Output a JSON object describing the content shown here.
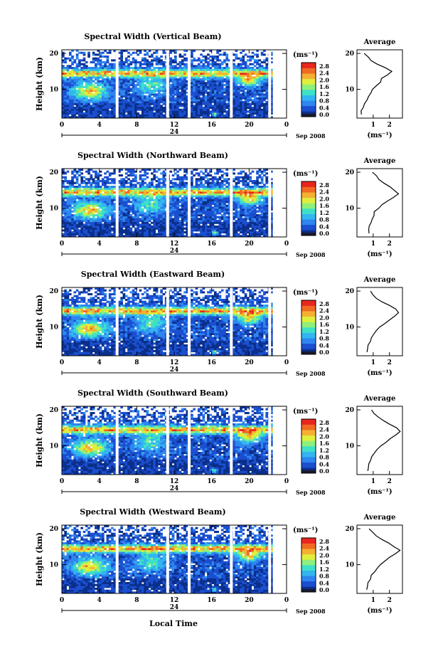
{
  "figure": {
    "common_xlabel": "Local Time",
    "date_label": "Sep 2008",
    "day_label": "24",
    "units_label": "(ms⁻¹)"
  },
  "colorbar": {
    "ticks": [
      "0.0",
      "0.4",
      "0.8",
      "1.2",
      "1.6",
      "2.0",
      "2.4",
      "2.8"
    ],
    "colors": [
      "#0b2f8a",
      "#1b4fd0",
      "#2e86ee",
      "#33b6f0",
      "#3ee0c8",
      "#8ef07a",
      "#e0ee3c",
      "#f5b032",
      "#f06a22",
      "#e8261e"
    ]
  },
  "chart_data": [
    {
      "type": "heatmap",
      "title": "Spectral Width (Vertical Beam)",
      "ylabel": "Height (km)",
      "xlabel": "Local Time",
      "x_ticks": [
        "0",
        "4",
        "8",
        "12",
        "16",
        "20",
        "0"
      ],
      "y_ticks": [
        "20",
        "10"
      ],
      "ylim": [
        2,
        21
      ],
      "xlim": [
        0,
        24
      ],
      "data_gaps_hours": [
        5.9,
        11.3,
        13.6,
        18.1,
        22.2
      ],
      "profile": {
        "title": "Average",
        "xlabel": "(ms⁻¹)",
        "x_ticks": [
          "1",
          "2"
        ],
        "y_ticks": [
          "20",
          "10"
        ],
        "heights": [
          3,
          4,
          5,
          6,
          7,
          8,
          9,
          10,
          11,
          12,
          13,
          14,
          15,
          16,
          17,
          18,
          19,
          20
        ],
        "values": [
          0.25,
          0.3,
          0.4,
          0.5,
          0.6,
          0.75,
          0.85,
          0.95,
          1.15,
          1.4,
          1.55,
          1.9,
          2.1,
          1.8,
          1.2,
          0.9,
          0.7,
          0.5
        ]
      }
    },
    {
      "type": "heatmap",
      "title": "Spectral Width (Northward Beam)",
      "ylabel": "Height (km)",
      "xlabel": "Local Time",
      "x_ticks": [
        "0",
        "4",
        "8",
        "12",
        "16",
        "20",
        "0"
      ],
      "y_ticks": [
        "20",
        "10"
      ],
      "ylim": [
        2,
        21
      ],
      "xlim": [
        0,
        24
      ],
      "data_gaps_hours": [
        5.9,
        11.3,
        13.6,
        18.1,
        22.2
      ],
      "profile": {
        "title": "Average",
        "xlabel": "(ms⁻¹)",
        "x_ticks": [
          "1",
          "2"
        ],
        "y_ticks": [
          "20",
          "10"
        ],
        "heights": [
          3,
          4,
          5,
          6,
          7,
          8,
          9,
          10,
          11,
          12,
          13,
          14,
          15,
          16,
          17,
          18,
          19,
          20
        ],
        "values": [
          0.7,
          0.75,
          0.8,
          0.85,
          0.9,
          1.0,
          1.1,
          1.3,
          1.6,
          1.9,
          2.2,
          2.5,
          2.3,
          2.0,
          1.6,
          1.4,
          1.2,
          1.0
        ]
      }
    },
    {
      "type": "heatmap",
      "title": "Spectral Width (Eastward Beam)",
      "ylabel": "Height (km)",
      "xlabel": "Local Time",
      "x_ticks": [
        "0",
        "4",
        "8",
        "12",
        "16",
        "20",
        "0"
      ],
      "y_ticks": [
        "20",
        "10"
      ],
      "ylim": [
        2,
        21
      ],
      "xlim": [
        0,
        24
      ],
      "data_gaps_hours": [
        5.9,
        11.3,
        13.6,
        18.1,
        22.2
      ],
      "profile": {
        "title": "Average",
        "xlabel": "(ms⁻¹)",
        "x_ticks": [
          "1",
          "2"
        ],
        "y_ticks": [
          "20",
          "10"
        ],
        "heights": [
          3,
          4,
          5,
          6,
          7,
          8,
          9,
          10,
          11,
          12,
          13,
          14,
          15,
          16,
          17,
          18,
          19,
          20
        ],
        "values": [
          0.6,
          0.65,
          0.7,
          0.8,
          0.9,
          1.0,
          1.2,
          1.4,
          1.7,
          2.0,
          2.3,
          2.6,
          2.4,
          2.0,
          1.5,
          1.2,
          1.0,
          0.8
        ]
      }
    },
    {
      "type": "heatmap",
      "title": "Spectral Width (Southward Beam)",
      "ylabel": "Height (km)",
      "xlabel": "Local Time",
      "x_ticks": [
        "0",
        "4",
        "8",
        "12",
        "16",
        "20",
        "0"
      ],
      "y_ticks": [
        "20",
        "10"
      ],
      "ylim": [
        2,
        21
      ],
      "xlim": [
        0,
        24
      ],
      "data_gaps_hours": [
        5.9,
        11.3,
        13.6,
        18.1,
        22.2
      ],
      "profile": {
        "title": "Average",
        "xlabel": "(ms⁻¹)",
        "x_ticks": [
          "1",
          "2"
        ],
        "y_ticks": [
          "20",
          "10"
        ],
        "heights": [
          3,
          4,
          5,
          6,
          7,
          8,
          9,
          10,
          11,
          12,
          13,
          14,
          15,
          16,
          17,
          18,
          19,
          20
        ],
        "values": [
          0.65,
          0.7,
          0.75,
          0.85,
          0.95,
          1.1,
          1.3,
          1.5,
          1.8,
          2.1,
          2.4,
          2.7,
          2.4,
          2.0,
          1.6,
          1.3,
          1.1,
          0.9
        ]
      }
    },
    {
      "type": "heatmap",
      "title": "Spectral Width (Westward Beam)",
      "ylabel": "Height (km)",
      "xlabel": "Local Time",
      "x_ticks": [
        "0",
        "4",
        "8",
        "12",
        "16",
        "20",
        "0"
      ],
      "y_ticks": [
        "20",
        "10"
      ],
      "ylim": [
        2,
        21
      ],
      "xlim": [
        0,
        24
      ],
      "data_gaps_hours": [
        5.9,
        11.3,
        13.6,
        18.1,
        22.2
      ],
      "profile": {
        "title": "Average",
        "xlabel": "(ms⁻¹)",
        "x_ticks": [
          "1",
          "2"
        ],
        "y_ticks": [
          "20",
          "10"
        ],
        "heights": [
          3,
          4,
          5,
          6,
          7,
          8,
          9,
          10,
          11,
          12,
          13,
          14,
          15,
          16,
          17,
          18,
          19,
          20
        ],
        "values": [
          0.6,
          0.65,
          0.7,
          0.8,
          0.9,
          1.05,
          1.2,
          1.45,
          1.75,
          2.05,
          2.35,
          2.6,
          2.3,
          1.9,
          1.5,
          1.2,
          1.0,
          0.8
        ]
      }
    }
  ]
}
